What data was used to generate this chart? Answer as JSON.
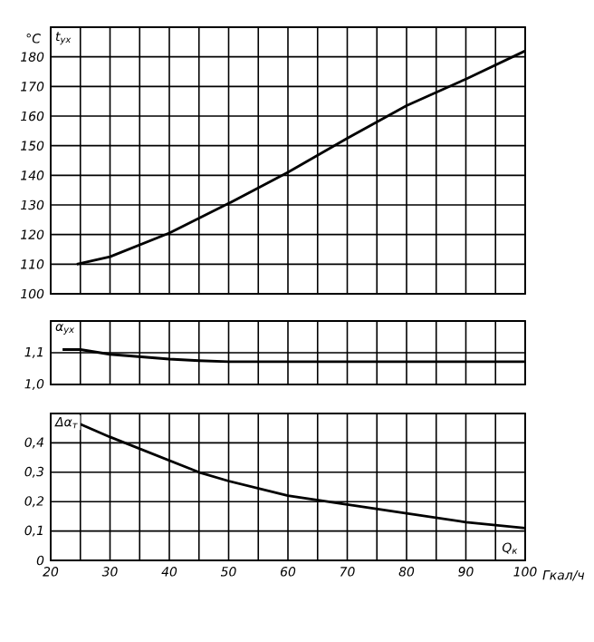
{
  "chart_data": [
    {
      "type": "line",
      "ylabel": "°C",
      "xlim": [
        20,
        100
      ],
      "ylim": [
        100,
        190
      ],
      "tick_labels": "y",
      "grid": true,
      "xticks": [
        20,
        25,
        30,
        35,
        40,
        45,
        50,
        55,
        60,
        65,
        70,
        75,
        80,
        85,
        90,
        95,
        100
      ],
      "yticks": [
        100,
        110,
        120,
        130,
        140,
        150,
        160,
        170,
        180,
        {
          "value": 190,
          "label": null
        }
      ],
      "series": [
        {
          "name": "t$_{ух}$",
          "color": "#000000",
          "x": [
            24.4,
            30,
            40,
            50,
            60,
            70,
            80,
            90,
            100
          ],
          "values": [
            110,
            112.5,
            120.5,
            130.5,
            141,
            152.5,
            163.5,
            172.5,
            182
          ]
        }
      ]
    },
    {
      "type": "line",
      "xlim": [
        20,
        100
      ],
      "ylim": [
        1.0,
        1.2
      ],
      "tick_labels": "y",
      "grid": true,
      "xticks": [
        20,
        25,
        30,
        35,
        40,
        45,
        50,
        55,
        60,
        65,
        70,
        75,
        80,
        85,
        90,
        95,
        100
      ],
      "yticks": [
        {
          "value": 1.0,
          "label": "1,0"
        },
        {
          "value": 1.1,
          "label": "1,1"
        },
        {
          "value": 1.2,
          "label": null
        }
      ],
      "series": [
        {
          "name": "α$_{ух}$",
          "color": "#000000",
          "x": [
            22,
            25,
            30,
            40,
            45,
            50,
            60,
            70,
            80,
            90,
            100
          ],
          "values": [
            1.11,
            1.11,
            1.095,
            1.08,
            1.075,
            1.072,
            1.072,
            1.072,
            1.072,
            1.072,
            1.072
          ]
        }
      ]
    },
    {
      "type": "line",
      "xlabel": "Гкал/ч",
      "annotations": [
        "Q$_{к}$"
      ],
      "xlim": [
        20,
        100
      ],
      "ylim": [
        0,
        0.5
      ],
      "grid": true,
      "xticks": [
        20,
        {
          "value": 25,
          "label": null
        },
        30,
        {
          "value": 35,
          "label": null
        },
        40,
        {
          "value": 45,
          "label": null
        },
        50,
        {
          "value": 55,
          "label": null
        },
        60,
        {
          "value": 65,
          "label": null
        },
        70,
        {
          "value": 75,
          "label": null
        },
        80,
        {
          "value": 85,
          "label": null
        },
        90,
        {
          "value": 95,
          "label": null
        },
        100
      ],
      "yticks": [
        0,
        {
          "value": 0.1,
          "label": "0,1"
        },
        {
          "value": 0.2,
          "label": "0,2"
        },
        {
          "value": 0.3,
          "label": "0,3"
        },
        {
          "value": 0.4,
          "label": "0,4"
        },
        {
          "value": 0.5,
          "label": null
        }
      ],
      "series": [
        {
          "name": "Δα$_{т}$",
          "color": "#000000",
          "x": [
            22,
            30,
            40,
            45,
            50,
            60,
            70,
            80,
            90,
            100
          ],
          "values": [
            0.49,
            0.42,
            0.34,
            0.3,
            0.27,
            0.22,
            0.19,
            0.16,
            0.13,
            0.11
          ]
        }
      ]
    }
  ]
}
